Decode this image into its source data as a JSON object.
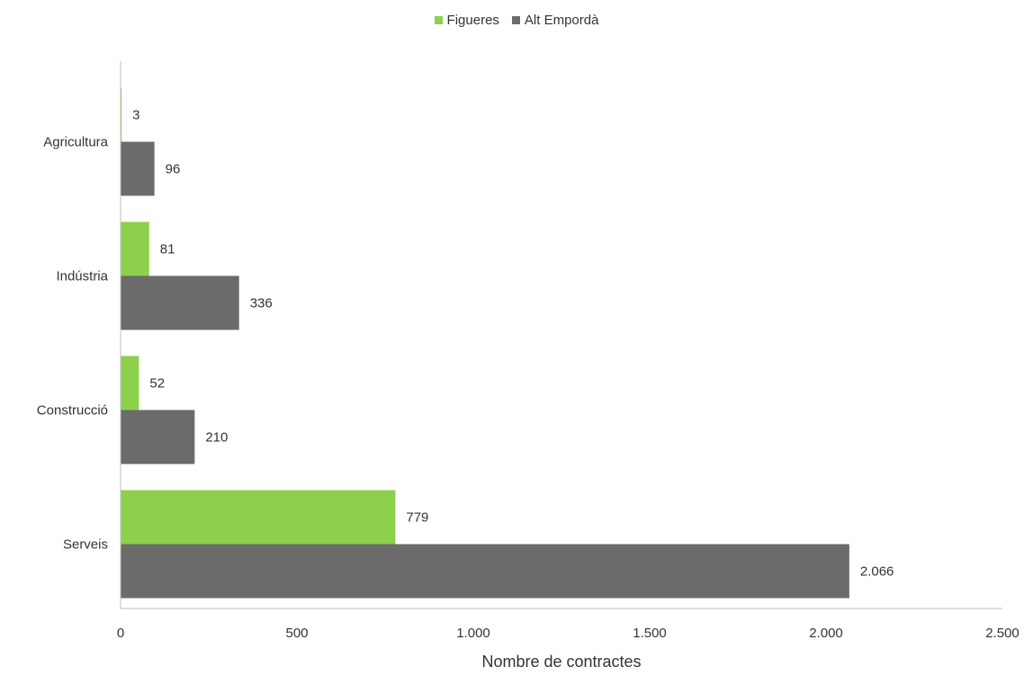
{
  "chart_data": {
    "type": "bar",
    "orientation": "horizontal",
    "categories": [
      "Agricultura",
      "Indústria",
      "Construcció",
      "Serveis"
    ],
    "series": [
      {
        "name": "Figueres",
        "values": [
          3,
          81,
          52,
          779
        ],
        "labels": [
          "3",
          "81",
          "52",
          "779"
        ],
        "color": "#8cd04c"
      },
      {
        "name": "Alt Empordà",
        "values": [
          96,
          336,
          210,
          2066
        ],
        "labels": [
          "96",
          "336",
          "210",
          "2.066"
        ],
        "color": "#6b6b6b"
      }
    ],
    "xlabel": "Nombre de contractes",
    "ylabel": "",
    "xlim": [
      0,
      2500
    ],
    "xticks": [
      {
        "value": 0,
        "label": "0"
      },
      {
        "value": 500,
        "label": "500"
      },
      {
        "value": 1000,
        "label": "1.000"
      },
      {
        "value": 1500,
        "label": "1.500"
      },
      {
        "value": 2000,
        "label": "2.000"
      },
      {
        "value": 2500,
        "label": "2.500"
      }
    ],
    "legend_position": "top-center",
    "grid": false
  }
}
